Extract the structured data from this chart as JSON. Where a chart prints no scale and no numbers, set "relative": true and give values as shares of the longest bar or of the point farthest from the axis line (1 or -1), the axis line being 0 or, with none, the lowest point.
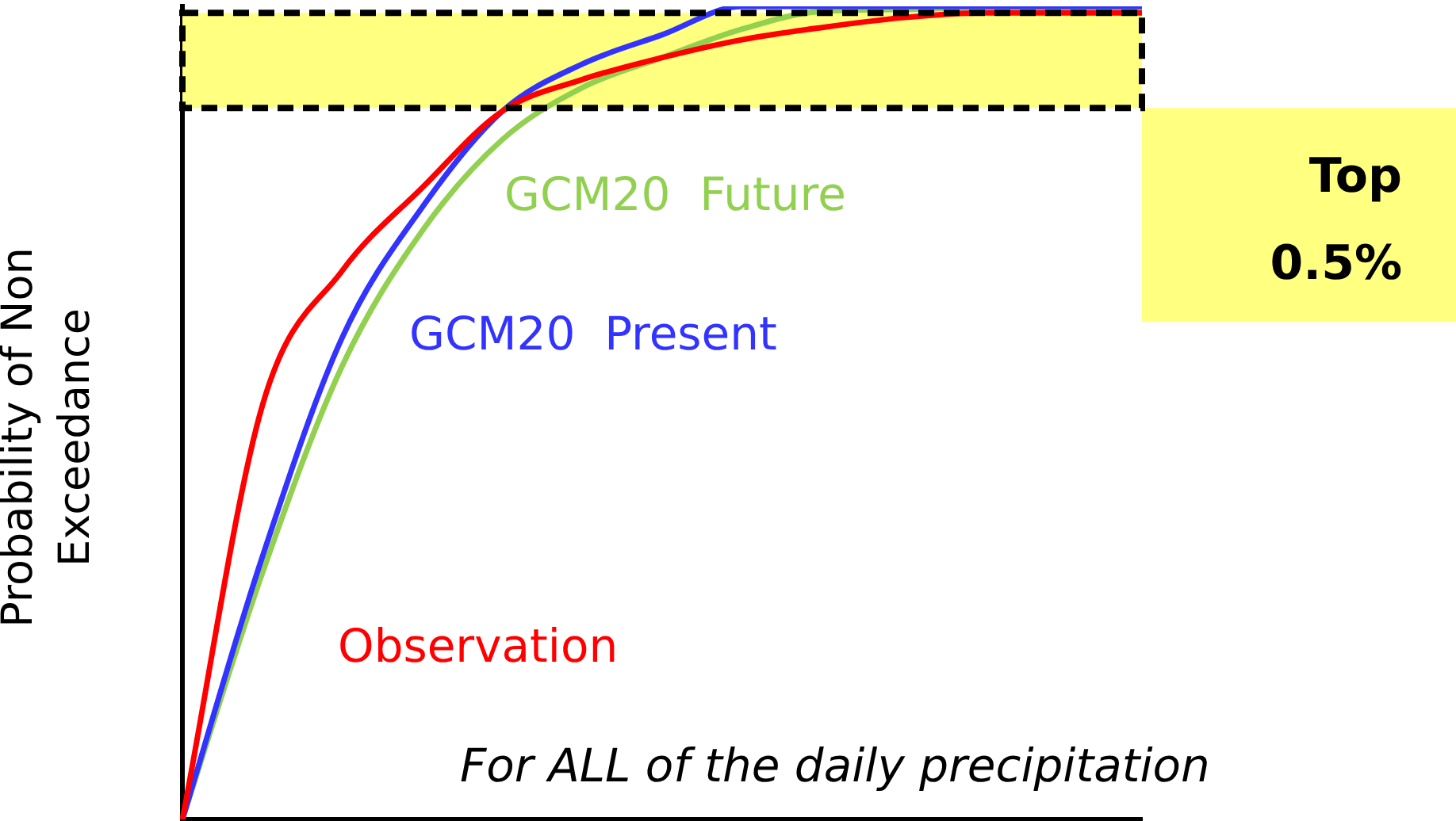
{
  "chart_data": {
    "type": "line",
    "relative": true,
    "ylabel": "Probability of Non Exceedance",
    "categories": [
      null,
      null,
      null,
      null,
      null,
      null,
      null,
      null,
      null,
      null,
      null,
      null,
      null
    ],
    "series": [
      {
        "name": "Observation",
        "color": "#ff0000",
        "values": [
          0,
          0.509,
          0.675,
          0.777,
          0.871,
          0.91,
          0.937,
          0.959,
          0.974,
          0.986,
          0.992,
          0.992,
          0.992
        ]
      },
      {
        "name": "GCM20  Present",
        "color": "#3333ff",
        "values": [
          0,
          0.323,
          0.593,
          0.753,
          0.871,
          0.929,
          0.965,
          1,
          1,
          1,
          1,
          1,
          1
        ]
      },
      {
        "name": "GCM20  Future",
        "color": "#92d050",
        "values": [
          0,
          0.303,
          0.558,
          0.724,
          0.836,
          0.9,
          0.937,
          0.972,
          0.994,
          0.996,
          0.998,
          0.998,
          0.998
        ]
      }
    ],
    "bands": [
      {
        "axis": "y",
        "from": 0.875,
        "to": 0.992,
        "label": "Top 0.5%",
        "color": "#ffff80"
      }
    ],
    "annotations": [
      "For ALL of the daily precipitation"
    ],
    "legend": false,
    "marker": "none",
    "line_style": "solid",
    "grid": false
  }
}
